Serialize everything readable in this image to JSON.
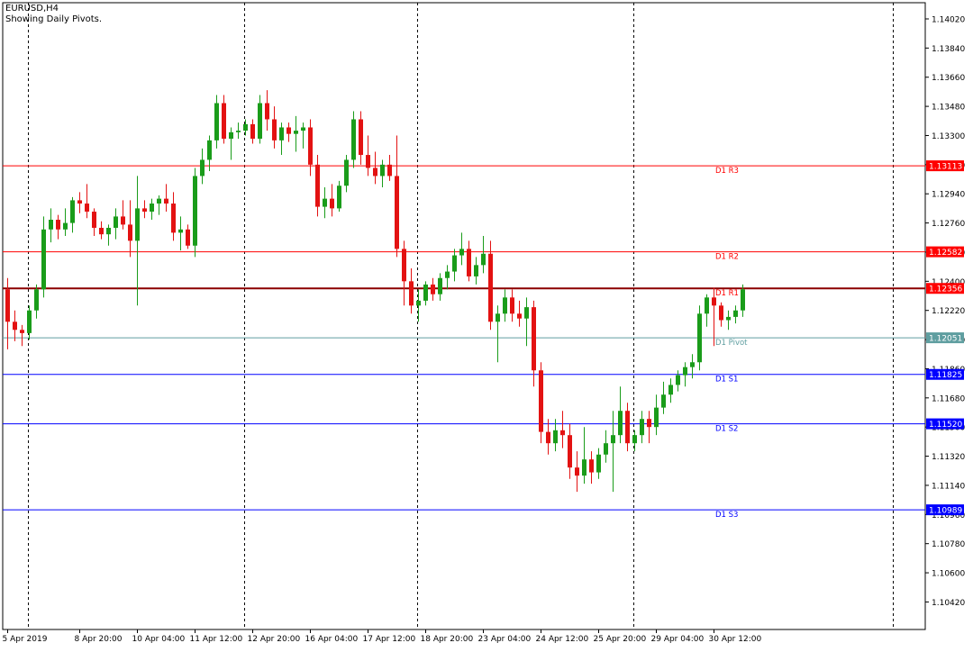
{
  "header": {
    "symbol": "EURUSD,H4",
    "indicator_note": "Showing Daily Pivots."
  },
  "chart_data": {
    "type": "candlestick",
    "ylim": [
      1.1025,
      1.1412
    ],
    "y_ticks": [
      "1.14020",
      "1.13840",
      "1.13660",
      "1.13480",
      "1.13300",
      "1.13120",
      "1.12940",
      "1.12760",
      "1.12580",
      "1.12400",
      "1.12220",
      "1.12040",
      "1.11860",
      "1.11680",
      "1.11500",
      "1.11320",
      "1.11140",
      "1.10960",
      "1.10780",
      "1.10600",
      "1.10420"
    ],
    "x_labels": [
      {
        "label": "5 Apr 2019",
        "bar": 0
      },
      {
        "label": "8 Apr 20:00",
        "bar": 10
      },
      {
        "label": "10 Apr 04:00",
        "bar": 18
      },
      {
        "label": "11 Apr 12:00",
        "bar": 26
      },
      {
        "label": "12 Apr 20:00",
        "bar": 34
      },
      {
        "label": "16 Apr 04:00",
        "bar": 42
      },
      {
        "label": "17 Apr 12:00",
        "bar": 50
      },
      {
        "label": "18 Apr 20:00",
        "bar": 58
      },
      {
        "label": "23 Apr 04:00",
        "bar": 66
      },
      {
        "label": "24 Apr 12:00",
        "bar": 74
      },
      {
        "label": "25 Apr 20:00",
        "bar": 82
      },
      {
        "label": "29 Apr 04:00",
        "bar": 90
      },
      {
        "label": "30 Apr 12:00",
        "bar": 98
      }
    ],
    "day_separators": [
      2.8,
      32.8,
      56.8,
      86.8,
      122.8
    ],
    "pivots": [
      {
        "name": "D1 R3",
        "value": 1.13113,
        "label": "1.13113",
        "color": "#ff0000"
      },
      {
        "name": "D1 R2",
        "value": 1.12582,
        "label": "1.12582",
        "color": "#ff0000"
      },
      {
        "name": "D1 R1",
        "value": 1.12356,
        "label": "1.12356",
        "color": "#ff0000"
      },
      {
        "name": "D1 Pivot",
        "value": 1.12051,
        "label": "1.12051",
        "color": "#5f9ea0"
      },
      {
        "name": "D1 S1",
        "value": 1.11825,
        "label": "1.11825",
        "color": "#0000ff"
      },
      {
        "name": "D1 S2",
        "value": 1.1152,
        "label": "1.11520",
        "color": "#0000ff"
      },
      {
        "name": "D1 S3",
        "value": 1.10989,
        "label": "1.10989",
        "color": "#0000ff"
      }
    ],
    "candles": [
      [
        1.1235,
        1.1242,
        1.1198,
        1.1215
      ],
      [
        1.1215,
        1.1222,
        1.1203,
        1.121
      ],
      [
        1.121,
        1.1213,
        1.12,
        1.1208
      ],
      [
        1.1208,
        1.1225,
        1.1204,
        1.1222
      ],
      [
        1.1222,
        1.1238,
        1.1217,
        1.1235
      ],
      [
        1.1235,
        1.128,
        1.123,
        1.1272
      ],
      [
        1.1272,
        1.1285,
        1.1264,
        1.1278
      ],
      [
        1.1278,
        1.1281,
        1.1266,
        1.1272
      ],
      [
        1.1272,
        1.1285,
        1.1268,
        1.1276
      ],
      [
        1.1276,
        1.1292,
        1.127,
        1.129
      ],
      [
        1.129,
        1.1295,
        1.1282,
        1.1288
      ],
      [
        1.1288,
        1.13,
        1.1279,
        1.1283
      ],
      [
        1.1283,
        1.1285,
        1.1268,
        1.1273
      ],
      [
        1.1273,
        1.1277,
        1.1266,
        1.1269
      ],
      [
        1.1269,
        1.1275,
        1.1262,
        1.1273
      ],
      [
        1.1273,
        1.1285,
        1.1266,
        1.128
      ],
      [
        1.128,
        1.129,
        1.1272,
        1.1275
      ],
      [
        1.1275,
        1.129,
        1.1255,
        1.1265
      ],
      [
        1.1265,
        1.1305,
        1.1225,
        1.1285
      ],
      [
        1.1285,
        1.129,
        1.1279,
        1.1283
      ],
      [
        1.1283,
        1.1291,
        1.1278,
        1.1288
      ],
      [
        1.1288,
        1.1293,
        1.1281,
        1.1291
      ],
      [
        1.1291,
        1.13,
        1.1283,
        1.1288
      ],
      [
        1.1288,
        1.1295,
        1.1265,
        1.127
      ],
      [
        1.127,
        1.128,
        1.1259,
        1.1272
      ],
      [
        1.1272,
        1.1275,
        1.126,
        1.1262
      ],
      [
        1.1262,
        1.131,
        1.1255,
        1.1305
      ],
      [
        1.1305,
        1.1322,
        1.13,
        1.1315
      ],
      [
        1.1315,
        1.133,
        1.1308,
        1.1327
      ],
      [
        1.1327,
        1.1355,
        1.1322,
        1.135
      ],
      [
        1.135,
        1.1355,
        1.1325,
        1.1328
      ],
      [
        1.1328,
        1.1335,
        1.1315,
        1.1332
      ],
      [
        1.1332,
        1.1338,
        1.1328,
        1.1333
      ],
      [
        1.1333,
        1.134,
        1.133,
        1.1337
      ],
      [
        1.1337,
        1.134,
        1.1325,
        1.1328
      ],
      [
        1.1328,
        1.1355,
        1.1325,
        1.135
      ],
      [
        1.135,
        1.1358,
        1.1333,
        1.134
      ],
      [
        1.134,
        1.1348,
        1.1322,
        1.1327
      ],
      [
        1.1327,
        1.1338,
        1.1318,
        1.1335
      ],
      [
        1.1335,
        1.1338,
        1.1326,
        1.1331
      ],
      [
        1.1331,
        1.1342,
        1.132,
        1.1333
      ],
      [
        1.1333,
        1.1338,
        1.1322,
        1.1335
      ],
      [
        1.1335,
        1.134,
        1.1305,
        1.1312
      ],
      [
        1.1312,
        1.1318,
        1.128,
        1.1286
      ],
      [
        1.1286,
        1.1298,
        1.1279,
        1.1291
      ],
      [
        1.1291,
        1.13,
        1.128,
        1.1285
      ],
      [
        1.1285,
        1.1302,
        1.1283,
        1.1299
      ],
      [
        1.1299,
        1.1318,
        1.1295,
        1.1315
      ],
      [
        1.1315,
        1.1345,
        1.131,
        1.134
      ],
      [
        1.134,
        1.1345,
        1.1312,
        1.1318
      ],
      [
        1.1318,
        1.133,
        1.1305,
        1.131
      ],
      [
        1.131,
        1.132,
        1.13,
        1.1305
      ],
      [
        1.1305,
        1.1315,
        1.1298,
        1.1312
      ],
      [
        1.1312,
        1.1318,
        1.1302,
        1.1305
      ],
      [
        1.1305,
        1.133,
        1.1255,
        1.126
      ],
      [
        1.126,
        1.1265,
        1.1225,
        1.124
      ],
      [
        1.124,
        1.1248,
        1.122,
        1.1225
      ],
      [
        1.1225,
        1.1235,
        1.1215,
        1.1228
      ],
      [
        1.1228,
        1.124,
        1.1225,
        1.1238
      ],
      [
        1.1238,
        1.1242,
        1.1228,
        1.1232
      ],
      [
        1.1232,
        1.1245,
        1.1228,
        1.1242
      ],
      [
        1.1242,
        1.125,
        1.1235,
        1.1246
      ],
      [
        1.1246,
        1.126,
        1.124,
        1.1256
      ],
      [
        1.1256,
        1.127,
        1.125,
        1.126
      ],
      [
        1.126,
        1.1265,
        1.124,
        1.1243
      ],
      [
        1.1243,
        1.1255,
        1.1238,
        1.125
      ],
      [
        1.125,
        1.1268,
        1.1245,
        1.1257
      ],
      [
        1.1257,
        1.1265,
        1.121,
        1.1215
      ],
      [
        1.1215,
        1.1225,
        1.119,
        1.122
      ],
      [
        1.122,
        1.1235,
        1.1215,
        1.123
      ],
      [
        1.123,
        1.1235,
        1.1215,
        1.122
      ],
      [
        1.122,
        1.1228,
        1.1212,
        1.1217
      ],
      [
        1.1217,
        1.123,
        1.12,
        1.1224
      ],
      [
        1.1224,
        1.1228,
        1.1175,
        1.1185
      ],
      [
        1.1185,
        1.119,
        1.114,
        1.1147
      ],
      [
        1.1147,
        1.1155,
        1.1133,
        1.114
      ],
      [
        1.114,
        1.1155,
        1.1135,
        1.1148
      ],
      [
        1.1148,
        1.116,
        1.1137,
        1.1145
      ],
      [
        1.1145,
        1.1152,
        1.1118,
        1.1125
      ],
      [
        1.1125,
        1.1135,
        1.111,
        1.112
      ],
      [
        1.112,
        1.115,
        1.1115,
        1.113
      ],
      [
        1.113,
        1.1135,
        1.1115,
        1.1122
      ],
      [
        1.1122,
        1.1137,
        1.1118,
        1.1133
      ],
      [
        1.1133,
        1.1148,
        1.1128,
        1.114
      ],
      [
        1.114,
        1.116,
        1.111,
        1.1145
      ],
      [
        1.1145,
        1.1175,
        1.114,
        1.116
      ],
      [
        1.116,
        1.1165,
        1.1135,
        1.114
      ],
      [
        1.114,
        1.1148,
        1.1135,
        1.1145
      ],
      [
        1.1145,
        1.116,
        1.114,
        1.1155
      ],
      [
        1.1155,
        1.116,
        1.114,
        1.115
      ],
      [
        1.115,
        1.117,
        1.1145,
        1.1162
      ],
      [
        1.1162,
        1.1178,
        1.1158,
        1.117
      ],
      [
        1.117,
        1.118,
        1.1165,
        1.1176
      ],
      [
        1.1176,
        1.1185,
        1.1172,
        1.1182
      ],
      [
        1.1182,
        1.119,
        1.1175,
        1.1187
      ],
      [
        1.1187,
        1.1195,
        1.118,
        1.119
      ],
      [
        1.119,
        1.1225,
        1.1185,
        1.122
      ],
      [
        1.122,
        1.1232,
        1.1212,
        1.123
      ],
      [
        1.123,
        1.1236,
        1.12,
        1.1225
      ],
      [
        1.1225,
        1.1227,
        1.1212,
        1.1216
      ],
      [
        1.1216,
        1.1222,
        1.121,
        1.1218
      ],
      [
        1.1218,
        1.1225,
        1.1214,
        1.1222
      ],
      [
        1.1222,
        1.1238,
        1.1218,
        1.1235
      ]
    ]
  }
}
